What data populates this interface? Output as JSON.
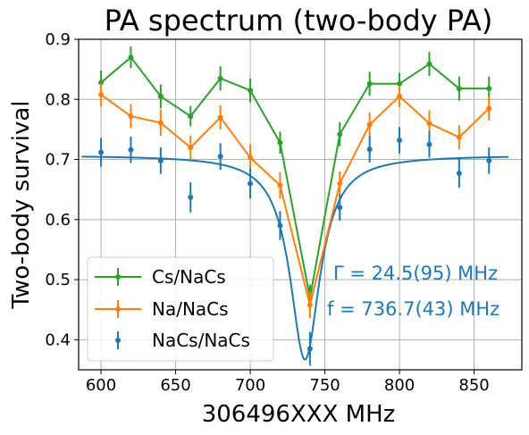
{
  "chart_data": {
    "type": "line",
    "title": "PA spectrum (two-body PA)",
    "xlabel": "306496XXX MHz",
    "ylabel": "Two-body survival",
    "xlim": [
      585,
      882
    ],
    "ylim": [
      0.35,
      0.9
    ],
    "xticks": [
      600,
      650,
      700,
      750,
      800,
      850
    ],
    "yticks": [
      0.4,
      0.5,
      0.6,
      0.7,
      0.8,
      0.9
    ],
    "grid": true,
    "legend_position": "lower-left",
    "series": [
      {
        "name": "Cs/NaCs",
        "color": "#2ca02c",
        "style": "errorbar-line",
        "x": [
          600,
          620,
          640,
          660,
          680,
          700,
          720,
          740,
          760,
          780,
          800,
          820,
          840,
          860
        ],
        "y": [
          0.828,
          0.87,
          0.805,
          0.772,
          0.835,
          0.815,
          0.728,
          0.47,
          0.742,
          0.826,
          0.826,
          0.859,
          0.818,
          0.818
        ],
        "err": [
          0.02,
          0.018,
          0.02,
          0.017,
          0.02,
          0.02,
          0.018,
          0.022,
          0.02,
          0.02,
          0.018,
          0.02,
          0.02,
          0.02
        ]
      },
      {
        "name": "Na/NaCs",
        "color": "#ff7f0e",
        "style": "errorbar-line",
        "x": [
          600,
          620,
          640,
          660,
          680,
          700,
          720,
          740,
          760,
          780,
          800,
          820,
          840,
          860
        ],
        "y": [
          0.808,
          0.772,
          0.761,
          0.72,
          0.77,
          0.703,
          0.657,
          0.458,
          0.66,
          0.758,
          0.805,
          0.76,
          0.737,
          0.785
        ],
        "err": [
          0.02,
          0.02,
          0.022,
          0.02,
          0.02,
          0.022,
          0.022,
          0.022,
          0.02,
          0.02,
          0.018,
          0.022,
          0.02,
          0.02
        ]
      },
      {
        "name": "NaCs/NaCs",
        "color": "#1f77b4",
        "style": "errorbar-points",
        "x": [
          600,
          620,
          640,
          660,
          680,
          700,
          720,
          740,
          760,
          780,
          800,
          820,
          840,
          860
        ],
        "y": [
          0.712,
          0.716,
          0.698,
          0.637,
          0.705,
          0.66,
          0.59,
          0.385,
          0.62,
          0.717,
          0.732,
          0.725,
          0.677,
          0.698
        ],
        "err": [
          0.024,
          0.022,
          0.022,
          0.025,
          0.022,
          0.025,
          0.024,
          0.028,
          0.022,
          0.022,
          0.022,
          0.022,
          0.024,
          0.022
        ]
      }
    ],
    "fit": {
      "color": "#1f77b4",
      "model": "lorentzian",
      "baseline": 0.707,
      "depth": 0.34,
      "center": 736.7,
      "fwhm": 24.5,
      "x_range": [
        587,
        873
      ]
    },
    "annotations": {
      "gamma": "Γ = 24.5(95) MHz",
      "f": "f = 736.7(43) MHz",
      "color": "#1f77b4"
    }
  }
}
